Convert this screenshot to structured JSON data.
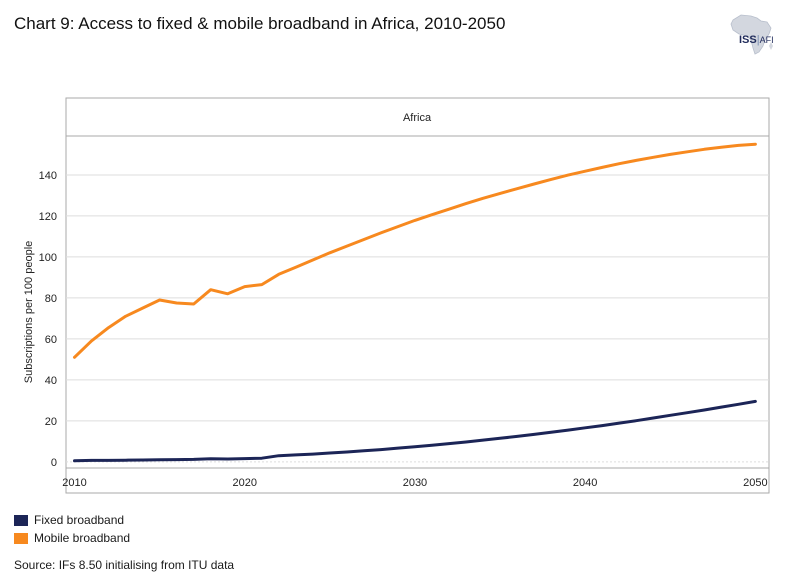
{
  "header": {
    "title": "Chart 9: Access to fixed & mobile broadband in Africa, 2010-2050",
    "logo_main": "ISS",
    "logo_sub": "AFI"
  },
  "colors": {
    "fixed": "#1c2557",
    "mobile": "#f7891f",
    "grid": "#dddddd",
    "frame": "#aaaaaa"
  },
  "legend": {
    "items": [
      {
        "label": "Fixed broadband",
        "color": "#1c2557"
      },
      {
        "label": "Mobile broadband",
        "color": "#f7891f"
      }
    ]
  },
  "footer": {
    "source": "Source: IFs 8.50 initialising from ITU data"
  },
  "chart_data": {
    "type": "line",
    "title": "Africa",
    "xlabel": "",
    "ylabel": "Subscriptions per 100 people",
    "xlim": [
      2009.5,
      2050.8
    ],
    "ylim": [
      -3,
      159
    ],
    "xticks": [
      2010,
      2020,
      2030,
      2040,
      2050
    ],
    "yticks": [
      0,
      20,
      40,
      60,
      80,
      100,
      120,
      140
    ],
    "grid": true,
    "series": [
      {
        "name": "Fixed broadband",
        "x": [
          2010,
          2011,
          2012,
          2013,
          2014,
          2015,
          2016,
          2017,
          2018,
          2019,
          2020,
          2021,
          2022,
          2023,
          2024,
          2025,
          2026,
          2027,
          2028,
          2029,
          2030,
          2031,
          2032,
          2033,
          2034,
          2035,
          2036,
          2037,
          2038,
          2039,
          2040,
          2041,
          2042,
          2043,
          2044,
          2045,
          2046,
          2047,
          2048,
          2049,
          2050
        ],
        "values": [
          0.5,
          0.7,
          0.7,
          0.8,
          0.9,
          1.0,
          1.1,
          1.2,
          1.5,
          1.4,
          1.6,
          1.8,
          3.0,
          3.4,
          3.8,
          4.3,
          4.8,
          5.4,
          6.0,
          6.7,
          7.4,
          8.1,
          8.9,
          9.7,
          10.6,
          11.5,
          12.4,
          13.4,
          14.4,
          15.5,
          16.6,
          17.7,
          18.9,
          20.1,
          21.4,
          22.7,
          24.0,
          25.3,
          26.7,
          28.1,
          29.5
        ]
      },
      {
        "name": "Mobile broadband",
        "x": [
          2010,
          2011,
          2012,
          2013,
          2014,
          2015,
          2016,
          2017,
          2018,
          2019,
          2020,
          2021,
          2022,
          2023,
          2024,
          2025,
          2026,
          2027,
          2028,
          2029,
          2030,
          2031,
          2032,
          2033,
          2034,
          2035,
          2036,
          2037,
          2038,
          2039,
          2040,
          2041,
          2042,
          2043,
          2044,
          2045,
          2046,
          2047,
          2048,
          2049,
          2050
        ],
        "values": [
          51,
          59,
          65.5,
          71,
          75,
          79,
          77.5,
          77,
          84,
          82,
          85.5,
          86.5,
          91.5,
          95,
          98.5,
          102,
          105.3,
          108.5,
          111.7,
          114.8,
          117.8,
          120.6,
          123.3,
          126,
          128.6,
          131,
          133.3,
          135.6,
          137.8,
          139.9,
          141.8,
          143.7,
          145.5,
          147.1,
          148.6,
          150,
          151.3,
          152.5,
          153.5,
          154.4,
          155
        ]
      }
    ]
  }
}
